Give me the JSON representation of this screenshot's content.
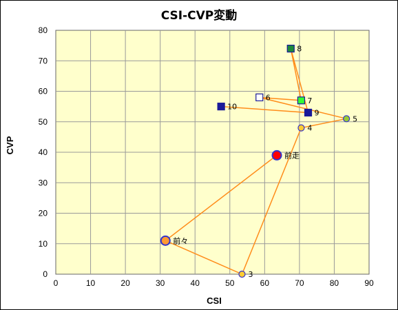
{
  "chart_data": {
    "type": "scatter",
    "title": "CSI-CVP変動",
    "xlabel": "CSI",
    "ylabel": "CVP",
    "xlim": [
      0,
      90
    ],
    "ylim": [
      0,
      80
    ],
    "xticks": [
      0,
      10,
      20,
      30,
      40,
      50,
      60,
      70,
      80,
      90
    ],
    "yticks": [
      0,
      10,
      20,
      30,
      40,
      50,
      60,
      70,
      80
    ],
    "grid": true,
    "plot_background": "#ffffcc",
    "line_color": "#ff8c1a",
    "path_order": [
      "前走",
      "前々",
      "3",
      "4",
      "5",
      "6",
      "7",
      "8",
      "9",
      "10"
    ],
    "points": [
      {
        "label": "前走",
        "x": 63.5,
        "y": 39,
        "marker": "circle-large",
        "fill": "#ff0000",
        "stroke": "#3333cc"
      },
      {
        "label": "前々",
        "x": 31.5,
        "y": 11,
        "marker": "circle-large",
        "fill": "#ff9933",
        "stroke": "#3333cc"
      },
      {
        "label": "3",
        "x": 53.5,
        "y": 0,
        "marker": "circle",
        "fill": "#ffcc33",
        "stroke": "#3333cc"
      },
      {
        "label": "4",
        "x": 70.5,
        "y": 48,
        "marker": "circle",
        "fill": "#ffcc33",
        "stroke": "#3333cc"
      },
      {
        "label": "5",
        "x": 83.5,
        "y": 51,
        "marker": "circle",
        "fill": "#99cc33",
        "stroke": "#3333cc"
      },
      {
        "label": "6",
        "x": 58.5,
        "y": 58,
        "marker": "square",
        "fill": "#ffffff",
        "stroke": "#1a1a99"
      },
      {
        "label": "7",
        "x": 70.5,
        "y": 57,
        "marker": "square",
        "fill": "#33ff33",
        "stroke": "#1a1a99"
      },
      {
        "label": "8",
        "x": 67.5,
        "y": 74,
        "marker": "square",
        "fill": "#1f8a3a",
        "stroke": "#1a1a99"
      },
      {
        "label": "9",
        "x": 72.5,
        "y": 53,
        "marker": "square",
        "fill": "#1a1a99",
        "stroke": "#1a1a99"
      },
      {
        "label": "10",
        "x": 47.5,
        "y": 55,
        "marker": "square",
        "fill": "#1a1a99",
        "stroke": "#1a1a99"
      }
    ]
  }
}
